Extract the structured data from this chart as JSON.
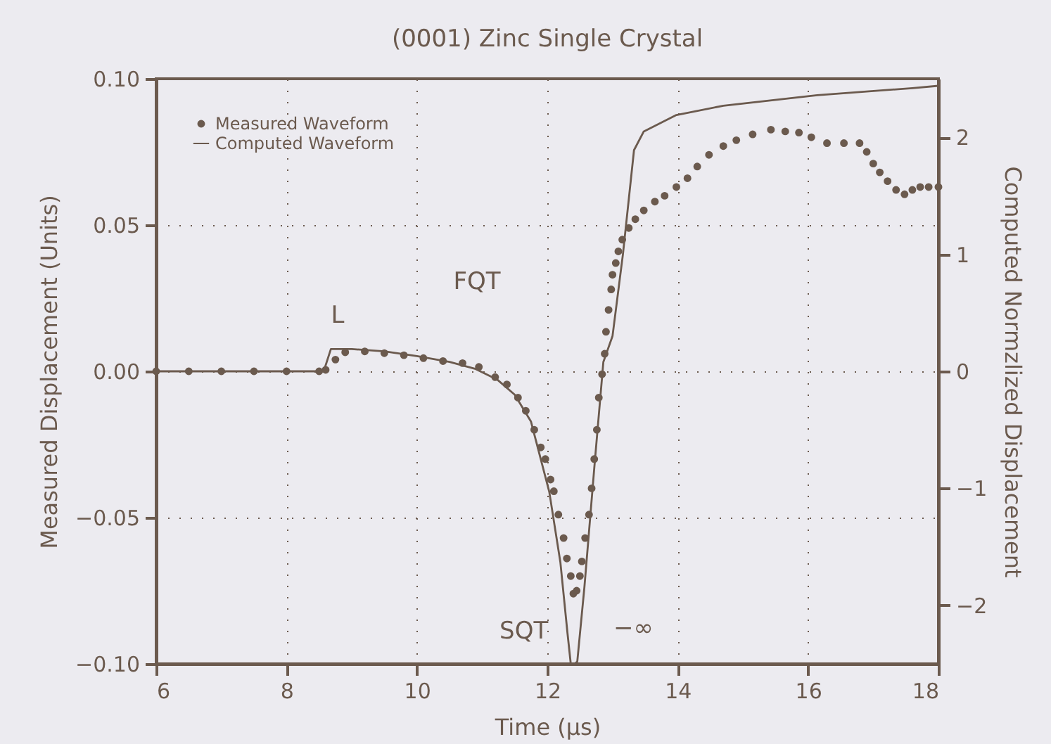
{
  "chart_data": {
    "type": "line",
    "title": "(0001) Zinc Single Crystal",
    "xlabel": "Time (μs)",
    "ylabel": "Measured Displacement (Units)",
    "y2label": "Computed Normzlized Displacement",
    "xlim": [
      6,
      18
    ],
    "xticks": [
      6,
      8,
      10,
      12,
      14,
      16,
      18
    ],
    "ylim": [
      -0.1,
      0.1
    ],
    "yticks": [
      {
        "value": -0.1,
        "label": "−0.10"
      },
      {
        "value": -0.05,
        "label": "−0.05"
      },
      {
        "value": 0,
        "label": "0.00"
      },
      {
        "value": 0.05,
        "label": "0.05"
      },
      {
        "value": 0.1,
        "label": "0.10"
      }
    ],
    "y2lim": [
      -2.5,
      2.5
    ],
    "y2ticks": [
      {
        "value": -2,
        "label": "−2"
      },
      {
        "value": -1,
        "label": "−1"
      },
      {
        "value": 0,
        "label": "0"
      },
      {
        "value": 1,
        "label": "1"
      },
      {
        "value": 2,
        "label": "2"
      }
    ],
    "grid": true,
    "legend": "top left",
    "series": [
      {
        "name": "Measured Waveform",
        "type": "scatter",
        "marker": "circle",
        "color": "#6b5a4e",
        "x": [
          6,
          6.5,
          7,
          7.5,
          8,
          8.5,
          8.6,
          8.75,
          8.9,
          9.2,
          9.5,
          9.8,
          10.1,
          10.4,
          10.7,
          10.95,
          11.2,
          11.38,
          11.55,
          11.67,
          11.8,
          11.9,
          11.97,
          12.05,
          12.1,
          12.17,
          12.25,
          12.3,
          12.36,
          12.4,
          12.45,
          12.5,
          12.53,
          12.58,
          12.64,
          12.68,
          12.72,
          12.76,
          12.79,
          12.84,
          12.88,
          12.9,
          12.94,
          12.98,
          13,
          13.05,
          13.09,
          13.15,
          13.25,
          13.35,
          13.48,
          13.65,
          13.8,
          13.98,
          14.15,
          14.3,
          14.48,
          14.7,
          14.9,
          15.15,
          15.43,
          15.65,
          15.86,
          16.05,
          16.29,
          16.55,
          16.79,
          16.9,
          17,
          17.1,
          17.22,
          17.35,
          17.48,
          17.6,
          17.72,
          17.85,
          18
        ],
        "values": [
          0,
          0,
          0,
          0,
          0,
          0,
          0.0005,
          0.004,
          0.0065,
          0.0068,
          0.0062,
          0.0055,
          0.0045,
          0.0035,
          0.0028,
          0.0015,
          -0.002,
          -0.0045,
          -0.009,
          -0.0135,
          -0.02,
          -0.026,
          -0.03,
          -0.037,
          -0.041,
          -0.049,
          -0.057,
          -0.064,
          -0.07,
          -0.076,
          -0.075,
          -0.07,
          -0.065,
          -0.057,
          -0.049,
          -0.04,
          -0.03,
          -0.02,
          -0.009,
          -0.001,
          0.006,
          0.0135,
          0.021,
          0.028,
          0.033,
          0.037,
          0.041,
          0.045,
          0.049,
          0.052,
          0.055,
          0.058,
          0.06,
          0.063,
          0.066,
          0.07,
          0.074,
          0.077,
          0.079,
          0.081,
          0.0826,
          0.082,
          0.0816,
          0.08,
          0.078,
          0.078,
          0.078,
          0.075,
          0.071,
          0.068,
          0.065,
          0.062,
          0.0605,
          0.062,
          0.063,
          0.063,
          0.063
        ]
      },
      {
        "name": "Computed Waveform",
        "type": "line",
        "axis": "y2",
        "line_style": "solid",
        "color": "#6b5a4e",
        "x": [
          6,
          8.57,
          8.68,
          9,
          9.5,
          10,
          10.5,
          10.9,
          11.23,
          11.5,
          11.75,
          12.03,
          12.2,
          12.31,
          12.36,
          12.42,
          12.46,
          12.57,
          12.72,
          12.86,
          13,
          13.16,
          13.33,
          13.48,
          13.98,
          14.7,
          16.14,
          17.6,
          18
        ],
        "values": [
          0,
          0,
          0.19,
          0.19,
          0.17,
          0.13,
          0.08,
          0.02,
          -0.07,
          -0.2,
          -0.43,
          -1.03,
          -1.63,
          -2.24,
          -2.5,
          -2.5,
          -2.48,
          -1.84,
          -0.83,
          0.08,
          0.3,
          1.0,
          1.89,
          2.05,
          2.19,
          2.27,
          2.36,
          2.42,
          2.44
        ]
      }
    ],
    "annotations": [
      "L",
      "FQT",
      "SQT",
      "−∞"
    ]
  }
}
